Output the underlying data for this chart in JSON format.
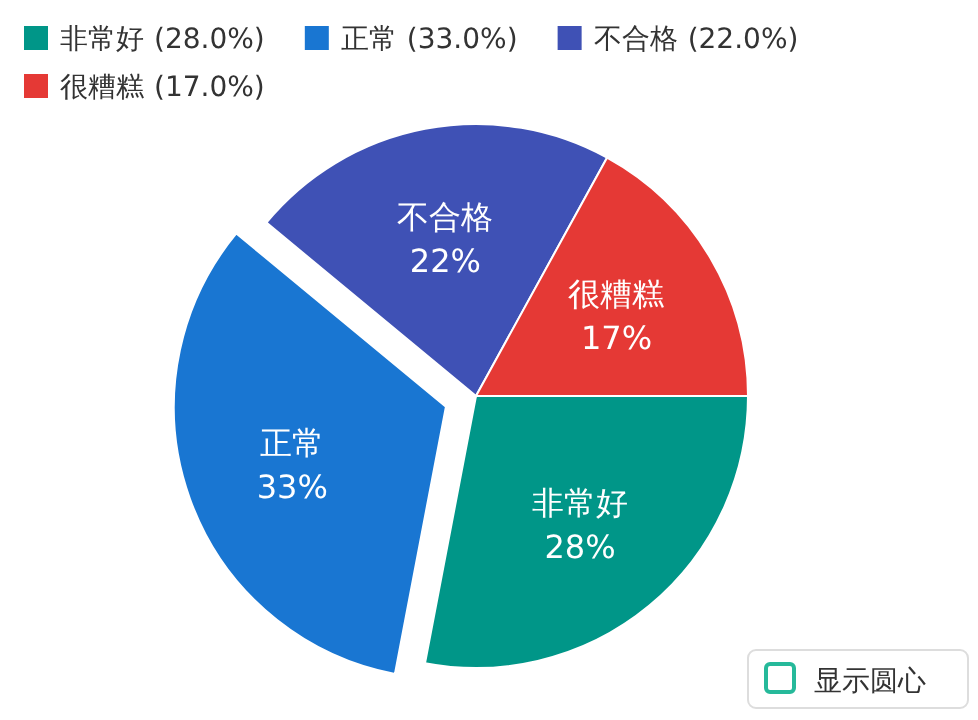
{
  "chart_data": {
    "type": "pie",
    "categories": [
      "非常好",
      "正常",
      "不合格",
      "很糟糕"
    ],
    "values": [
      28,
      33,
      22,
      17
    ],
    "colors": [
      "#009688",
      "#1976d2",
      "#3f51b5",
      "#e53935"
    ],
    "value_labels": [
      "28%",
      "33%",
      "22%",
      "17%"
    ],
    "legend": "top",
    "annotations": [
      "(28.0%)",
      "(33.0%)",
      "(22.0%)",
      "(17.0%)",
      "显示圆心"
    ]
  }
}
